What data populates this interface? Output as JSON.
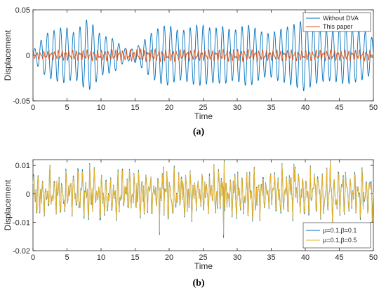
{
  "chart_data": [
    {
      "type": "line",
      "panel_label": "(a)",
      "xlabel": "Time",
      "ylabel": "Displacement",
      "xlim": [
        0,
        50
      ],
      "ylim": [
        -0.05,
        0.05
      ],
      "xticks": [
        "0",
        "5",
        "10",
        "15",
        "20",
        "25",
        "30",
        "35",
        "40",
        "45",
        "50"
      ],
      "yticks": [
        "-0.05",
        "0",
        "0.05"
      ],
      "grid": false,
      "legend_position": "top-right",
      "series": [
        {
          "name": "Without DVA",
          "color": "#0072BD",
          "envelope_note_free": true,
          "x": [
            0,
            1,
            2,
            3,
            4,
            5,
            6,
            7,
            8,
            9,
            10,
            11,
            12,
            13,
            14,
            15,
            16,
            17,
            18,
            19,
            20,
            21,
            22,
            23,
            24,
            25,
            26,
            27,
            28,
            29,
            30,
            31,
            32,
            33,
            34,
            35,
            36,
            37,
            38,
            39,
            40,
            41,
            42,
            43,
            44,
            45,
            46,
            47,
            48,
            49,
            50
          ],
          "amplitude": [
            0.005,
            0.015,
            0.024,
            0.027,
            0.03,
            0.03,
            0.025,
            0.032,
            0.04,
            0.032,
            0.022,
            0.02,
            0.018,
            0.01,
            0.006,
            0.008,
            0.014,
            0.022,
            0.028,
            0.032,
            0.033,
            0.028,
            0.027,
            0.03,
            0.033,
            0.033,
            0.03,
            0.03,
            0.032,
            0.028,
            0.028,
            0.033,
            0.033,
            0.028,
            0.024,
            0.024,
            0.028,
            0.03,
            0.033,
            0.036,
            0.04,
            0.033,
            0.03,
            0.028,
            0.028,
            0.03,
            0.032,
            0.03,
            0.028,
            0.025,
            0.018
          ]
        },
        {
          "name": "This paper",
          "color": "#D95319",
          "x": [
            0,
            5,
            10,
            15,
            20,
            25,
            30,
            35,
            40,
            45,
            50
          ],
          "amplitude": [
            0.004,
            0.006,
            0.006,
            0.007,
            0.007,
            0.006,
            0.007,
            0.006,
            0.006,
            0.006,
            0.006
          ]
        }
      ]
    },
    {
      "type": "line",
      "panel_label": "(b)",
      "xlabel": "Time",
      "ylabel": "Displacement",
      "xlim": [
        0,
        50
      ],
      "ylim": [
        -0.02,
        0.012
      ],
      "xticks": [
        "0",
        "5",
        "10",
        "15",
        "20",
        "25",
        "30",
        "35",
        "40",
        "45",
        "50"
      ],
      "yticks": [
        "-0.02",
        "-0.01",
        "0",
        "0.01"
      ],
      "grid": false,
      "legend_position": "bottom-right",
      "series": [
        {
          "name": "μ=0.1,β=0.1",
          "color": "#0072BD"
        },
        {
          "name": "μ=0.1,β=0.5",
          "color": "#EDB120"
        }
      ],
      "peaks": [
        {
          "x": 28.1,
          "y": 0.0118
        },
        {
          "x": 28.0,
          "y": -0.0155
        },
        {
          "x": 18.6,
          "y": -0.0145
        },
        {
          "x": 19.2,
          "y": 0.0095
        },
        {
          "x": 38.5,
          "y": 0.0095
        },
        {
          "x": 43.7,
          "y": 0.012
        }
      ]
    }
  ],
  "captions": {
    "a": "(a)",
    "b": "(b)"
  }
}
